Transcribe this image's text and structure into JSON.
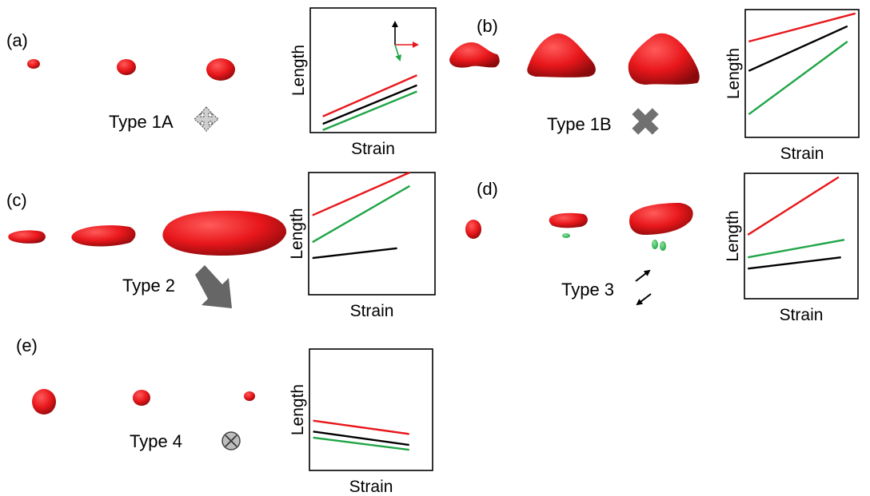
{
  "panels": [
    {
      "label": "(a)",
      "type_label": "Type 1A",
      "symbol": "dashed-four-way-arrows-icon"
    },
    {
      "label": "(b)",
      "type_label": "Type 1B",
      "symbol": "gray-cross-icon"
    },
    {
      "label": "(c)",
      "type_label": "Type 2",
      "symbol": "gray-diagonal-arrow-icon"
    },
    {
      "label": "(d)",
      "type_label": "Type 3",
      "symbol": "opposing-arrows-icon"
    },
    {
      "label": "(e)",
      "type_label": "Type 4",
      "symbol": "circled-x-icon"
    }
  ],
  "chart_data": [
    {
      "type": "line",
      "xlabel": "Strain",
      "ylabel": "Length",
      "xlim": [
        0,
        1
      ],
      "ylim": [
        0,
        1
      ],
      "series": [
        {
          "color": "#e8171b",
          "x": [
            0.1,
            0.85
          ],
          "y": [
            0.13,
            0.46
          ]
        },
        {
          "color": "#000000",
          "x": [
            0.1,
            0.85
          ],
          "y": [
            0.07,
            0.38
          ]
        },
        {
          "color": "#1fa546",
          "x": [
            0.1,
            0.85
          ],
          "y": [
            0.02,
            0.33
          ]
        }
      ]
    },
    {
      "type": "line",
      "xlabel": "Strain",
      "ylabel": "Length",
      "xlim": [
        0,
        1
      ],
      "ylim": [
        0,
        1
      ],
      "series": [
        {
          "color": "#e8171b",
          "x": [
            0.03,
            0.97
          ],
          "y": [
            0.75,
            0.97
          ]
        },
        {
          "color": "#000000",
          "x": [
            0.03,
            0.9
          ],
          "y": [
            0.52,
            0.87
          ]
        },
        {
          "color": "#1fa546",
          "x": [
            0.03,
            0.9
          ],
          "y": [
            0.18,
            0.75
          ]
        }
      ]
    },
    {
      "type": "line",
      "xlabel": "Strain",
      "ylabel": "Length",
      "xlim": [
        0,
        1
      ],
      "ylim": [
        0,
        1
      ],
      "series": [
        {
          "color": "#e8171b",
          "x": [
            0.03,
            0.8
          ],
          "y": [
            0.65,
            1.0
          ]
        },
        {
          "color": "#1fa546",
          "x": [
            0.03,
            0.8
          ],
          "y": [
            0.43,
            0.89
          ]
        },
        {
          "color": "#000000",
          "x": [
            0.03,
            0.7
          ],
          "y": [
            0.3,
            0.38
          ]
        }
      ]
    },
    {
      "type": "line",
      "xlabel": "Strain",
      "ylabel": "Length",
      "xlim": [
        0,
        1
      ],
      "ylim": [
        0,
        1
      ],
      "series": [
        {
          "color": "#e8171b",
          "x": [
            0.03,
            0.83
          ],
          "y": [
            0.51,
            0.97
          ]
        },
        {
          "color": "#1fa546",
          "x": [
            0.03,
            0.88
          ],
          "y": [
            0.33,
            0.47
          ]
        },
        {
          "color": "#000000",
          "x": [
            0.03,
            0.85
          ],
          "y": [
            0.24,
            0.33
          ]
        }
      ]
    },
    {
      "type": "line",
      "xlabel": "Strain",
      "ylabel": "Length",
      "xlim": [
        0,
        1
      ],
      "ylim": [
        0,
        1
      ],
      "series": [
        {
          "color": "#e8171b",
          "x": [
            0.03,
            0.81
          ],
          "y": [
            0.41,
            0.3
          ]
        },
        {
          "color": "#000000",
          "x": [
            0.03,
            0.81
          ],
          "y": [
            0.32,
            0.21
          ]
        },
        {
          "color": "#1fa546",
          "x": [
            0.03,
            0.81
          ],
          "y": [
            0.27,
            0.17
          ]
        }
      ]
    }
  ]
}
